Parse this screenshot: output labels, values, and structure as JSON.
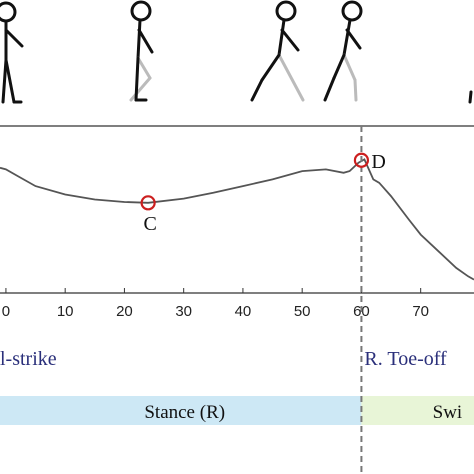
{
  "chart_data": {
    "type": "line",
    "title": "",
    "xlabel": "",
    "ylabel": "",
    "xlim": [
      -1,
      79
    ],
    "x_ticks": [
      "0",
      "10",
      "20",
      "30",
      "40",
      "50",
      "60",
      "70"
    ],
    "grid": false,
    "series": [
      {
        "x": [
          -1,
          0,
          2,
          5,
          10,
          15,
          20,
          24,
          30,
          35,
          40,
          45,
          50,
          54,
          57,
          58,
          59.5,
          60.5,
          62,
          63,
          65,
          68,
          70,
          73,
          76,
          78,
          79
        ],
        "y": [
          0.75,
          0.74,
          0.7,
          0.64,
          0.59,
          0.56,
          0.545,
          0.54,
          0.565,
          0.6,
          0.64,
          0.68,
          0.73,
          0.74,
          0.72,
          0.73,
          0.78,
          0.8,
          0.68,
          0.66,
          0.58,
          0.44,
          0.35,
          0.25,
          0.15,
          0.1,
          0.08
        ]
      }
    ],
    "annotations": [
      {
        "label": "C",
        "x": 24,
        "y": 0.54
      },
      {
        "label": "D",
        "x": 60,
        "y": 0.795
      }
    ],
    "events": [
      {
        "label": "l-strike",
        "x": 0
      },
      {
        "label": "R. Toe-off",
        "x": 60
      }
    ],
    "vline_x": 60,
    "phases": [
      {
        "label": "Stance (R)",
        "x_start": -1,
        "x_end": 60,
        "color": "#cde8f5"
      },
      {
        "label": "Swi",
        "x_start": 60,
        "x_end": 79,
        "color": "#e8f5d7"
      }
    ],
    "line_color": "#555555",
    "marker_color": "#cc1f1f",
    "vline_color": "#777777"
  }
}
